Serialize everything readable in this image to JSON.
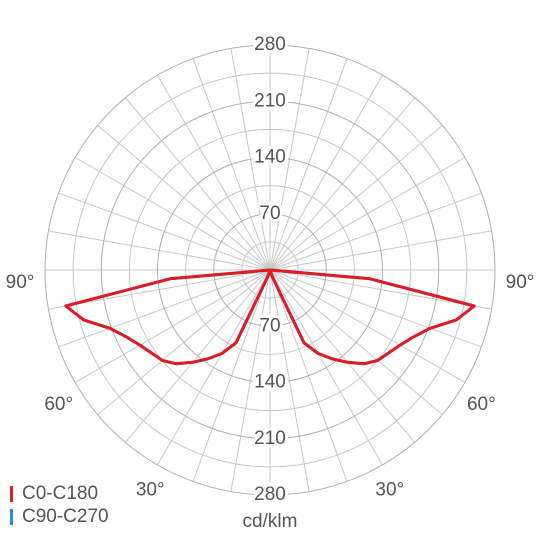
{
  "chart_data": {
    "type": "polar-photometric",
    "x": [
      0,
      5,
      10,
      15,
      20,
      25,
      30,
      35,
      40,
      45,
      50,
      55,
      60,
      65,
      70,
      75,
      80,
      85,
      90
    ],
    "series": [
      {
        "name": "C90-C270",
        "color": "#2a8fe0",
        "values": [
          0,
          0,
          0,
          3,
          10,
          100,
          120,
          135,
          150,
          165,
          175,
          180,
          187,
          197,
          212,
          240,
          258,
          125,
          0
        ]
      },
      {
        "name": "C0-C180",
        "color": "#e01b22",
        "values": [
          0,
          0,
          0,
          3,
          10,
          100,
          120,
          135,
          150,
          165,
          175,
          180,
          187,
          197,
          212,
          240,
          258,
          125,
          0
        ]
      }
    ],
    "rlim": [
      0,
      280
    ],
    "rticks": [
      70,
      140,
      210,
      280
    ],
    "angle_ticks": [
      {
        "value": 30,
        "label": "30°"
      },
      {
        "value": 60,
        "label": "60°"
      },
      {
        "value": 90,
        "label": "90°"
      }
    ],
    "unit_label": "cd/klm",
    "grid": true
  }
}
